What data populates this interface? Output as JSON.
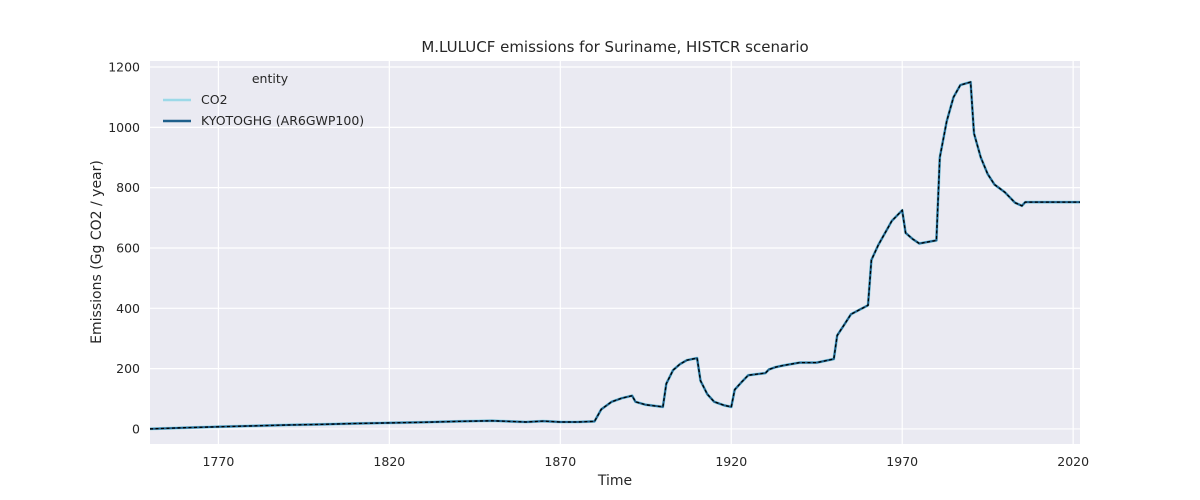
{
  "chart_data": {
    "type": "line",
    "title": "M.LULUCF emissions for Suriname, HISTCR scenario",
    "xlabel": "Time",
    "ylabel": "Emissions (Gg CO2 / year)",
    "xlim": [
      1750,
      2022
    ],
    "ylim": [
      -50,
      1220
    ],
    "xticks": [
      1770,
      1820,
      1870,
      1920,
      1970,
      2020
    ],
    "yticks": [
      0,
      200,
      400,
      600,
      800,
      1000,
      1200
    ],
    "grid": true,
    "legend": {
      "title": "entity",
      "placement": "top-left"
    },
    "series": [
      {
        "name": "CO2",
        "color": "#9cd9e8",
        "style": "solid",
        "x": [
          1750,
          1760,
          1770,
          1780,
          1790,
          1800,
          1810,
          1820,
          1830,
          1840,
          1850,
          1860,
          1865,
          1870,
          1875,
          1880,
          1882,
          1885,
          1888,
          1891,
          1892,
          1895,
          1900,
          1901,
          1903,
          1905,
          1907,
          1910,
          1911,
          1913,
          1915,
          1918,
          1920,
          1921,
          1923,
          1925,
          1930,
          1931,
          1933,
          1935,
          1940,
          1945,
          1950,
          1951,
          1953,
          1955,
          1960,
          1961,
          1963,
          1965,
          1967,
          1970,
          1971,
          1973,
          1975,
          1980,
          1981,
          1983,
          1985,
          1987,
          1990,
          1991,
          1993,
          1995,
          1997,
          2000,
          2003,
          2005,
          2006,
          2010,
          2015,
          2020,
          2022
        ],
        "values": [
          0,
          4,
          7,
          10,
          13,
          15,
          18,
          20,
          22,
          25,
          27,
          23,
          26,
          23,
          23,
          25,
          65,
          90,
          102,
          110,
          90,
          80,
          73,
          150,
          195,
          215,
          228,
          235,
          160,
          115,
          90,
          78,
          73,
          130,
          155,
          178,
          185,
          197,
          205,
          210,
          220,
          220,
          232,
          310,
          345,
          380,
          410,
          560,
          610,
          650,
          690,
          725,
          650,
          630,
          615,
          625,
          900,
          1020,
          1100,
          1140,
          1150,
          980,
          900,
          845,
          810,
          785,
          750,
          740,
          752,
          752,
          752,
          752,
          752
        ]
      },
      {
        "name": "KYOTOGHG (AR6GWP100)",
        "color": "#1f5f8b",
        "style": "solid",
        "x": [
          1750,
          1760,
          1770,
          1780,
          1790,
          1800,
          1810,
          1820,
          1830,
          1840,
          1850,
          1860,
          1865,
          1870,
          1875,
          1880,
          1882,
          1885,
          1888,
          1891,
          1892,
          1895,
          1900,
          1901,
          1903,
          1905,
          1907,
          1910,
          1911,
          1913,
          1915,
          1918,
          1920,
          1921,
          1923,
          1925,
          1930,
          1931,
          1933,
          1935,
          1940,
          1945,
          1950,
          1951,
          1953,
          1955,
          1960,
          1961,
          1963,
          1965,
          1967,
          1970,
          1971,
          1973,
          1975,
          1980,
          1981,
          1983,
          1985,
          1987,
          1990,
          1991,
          1993,
          1995,
          1997,
          2000,
          2003,
          2005,
          2006,
          2010,
          2015,
          2020,
          2022
        ],
        "values": [
          0,
          4,
          7,
          10,
          13,
          15,
          18,
          20,
          22,
          25,
          27,
          23,
          26,
          23,
          23,
          25,
          65,
          90,
          102,
          110,
          90,
          80,
          73,
          150,
          195,
          215,
          228,
          235,
          160,
          115,
          90,
          78,
          73,
          130,
          155,
          178,
          185,
          197,
          205,
          210,
          220,
          220,
          232,
          310,
          345,
          380,
          410,
          560,
          610,
          650,
          690,
          725,
          650,
          630,
          615,
          625,
          900,
          1020,
          1100,
          1140,
          1150,
          980,
          900,
          845,
          810,
          785,
          750,
          740,
          752,
          752,
          752,
          752,
          752
        ]
      }
    ]
  }
}
